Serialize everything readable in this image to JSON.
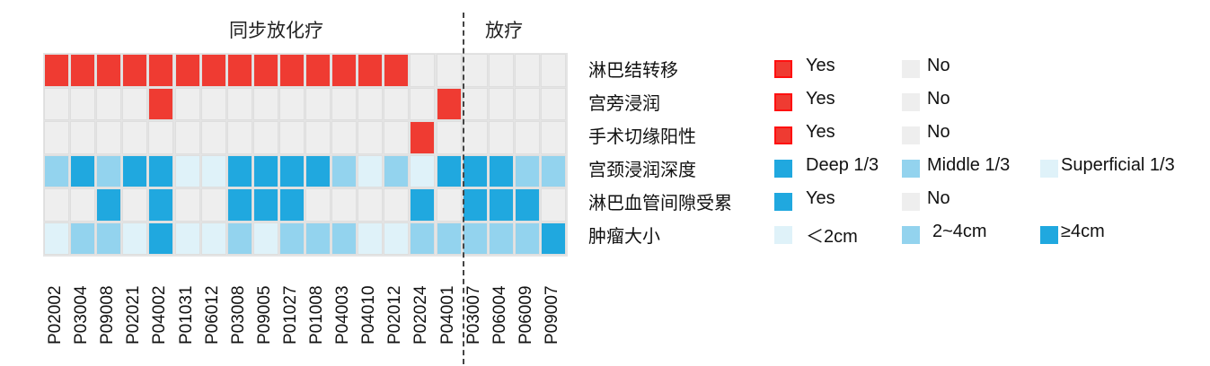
{
  "chart_data": {
    "type": "heatmap",
    "groups": [
      {
        "label": "同步放化疗",
        "columns": 16
      },
      {
        "label": "放疗",
        "columns": 4
      }
    ],
    "columns": [
      "P02002",
      "P03004",
      "P09008",
      "P02021",
      "P04002",
      "P01031",
      "P06012",
      "P03008",
      "P09005",
      "P01027",
      "P01008",
      "P04003",
      "P04010",
      "P02012",
      "P02024",
      "P04001",
      "P03007",
      "P06004",
      "P06009",
      "P09007"
    ],
    "rows": [
      {
        "label": "淋巴结转移",
        "legend": [
          {
            "key": "Y",
            "label": "Yes"
          },
          {
            "key": "N",
            "label": "No"
          }
        ],
        "values": [
          "Y",
          "Y",
          "Y",
          "Y",
          "Y",
          "Y",
          "Y",
          "Y",
          "Y",
          "Y",
          "Y",
          "Y",
          "Y",
          "Y",
          "N",
          "N",
          "N",
          "N",
          "N",
          "N"
        ]
      },
      {
        "label": "宫旁浸润",
        "legend": [
          {
            "key": "Y",
            "label": "Yes"
          },
          {
            "key": "N",
            "label": "No"
          }
        ],
        "values": [
          "N",
          "N",
          "N",
          "N",
          "Y",
          "N",
          "N",
          "N",
          "N",
          "N",
          "N",
          "N",
          "N",
          "N",
          "N",
          "Y",
          "N",
          "N",
          "N",
          "N"
        ]
      },
      {
        "label": "手术切缘阳性",
        "legend": [
          {
            "key": "Y",
            "label": "Yes"
          },
          {
            "key": "N",
            "label": "No"
          }
        ],
        "values": [
          "N",
          "N",
          "N",
          "N",
          "N",
          "N",
          "N",
          "N",
          "N",
          "N",
          "N",
          "N",
          "N",
          "N",
          "Y",
          "N",
          "N",
          "N",
          "N",
          "N"
        ]
      },
      {
        "label": "宫颈浸润深度",
        "legend": [
          {
            "key": "D",
            "label": "Deep 1/3"
          },
          {
            "key": "M",
            "label": "Middle 1/3"
          },
          {
            "key": "S",
            "label": "Superficial 1/3"
          }
        ],
        "values": [
          "M",
          "D",
          "M",
          "D",
          "D",
          "S",
          "S",
          "D",
          "D",
          "D",
          "D",
          "M",
          "S",
          "M",
          "S",
          "D",
          "D",
          "D",
          "M",
          "M"
        ]
      },
      {
        "label": "淋巴血管间隙受累",
        "legend": [
          {
            "key": "Y",
            "label": "Yes"
          },
          {
            "key": "N",
            "label": "No"
          }
        ],
        "values": [
          "N",
          "N",
          "Y",
          "N",
          "Y",
          "N",
          "N",
          "Y",
          "Y",
          "Y",
          "N",
          "N",
          "N",
          "N",
          "Y",
          "N",
          "Y",
          "Y",
          "Y",
          "N"
        ]
      },
      {
        "label": "肿瘤大小",
        "legend": [
          {
            "key": "S",
            "label": "＜2cm"
          },
          {
            "key": "M",
            "label": "2~4cm"
          },
          {
            "key": "L",
            "label": "≥4cm"
          }
        ],
        "values": [
          "S",
          "M",
          "M",
          "S",
          "L",
          "S",
          "S",
          "M",
          "S",
          "M",
          "M",
          "M",
          "S",
          "S",
          "M",
          "M",
          "M",
          "M",
          "M",
          "L"
        ]
      }
    ],
    "colors": {
      "red_yes": "#ef3b32",
      "gray_no": "#eeeeee",
      "blue_dark": "#20a8df",
      "blue_mid": "#93d3ee",
      "blue_light": "#dff2f9"
    }
  }
}
